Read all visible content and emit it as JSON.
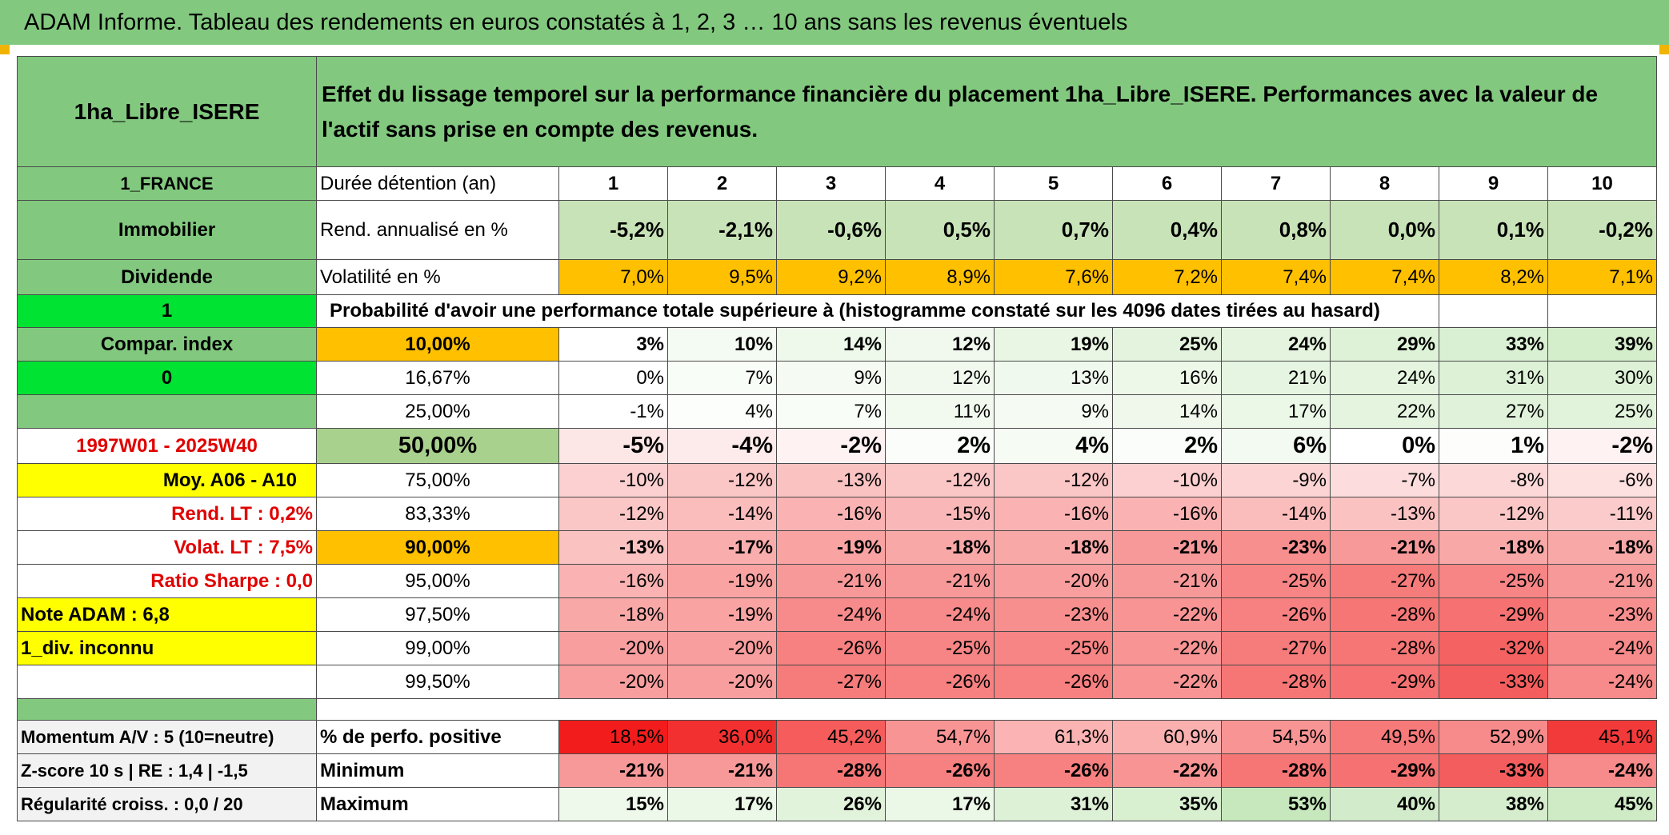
{
  "title": "ADAM Informe. Tableau des rendements en euros constatés à 1, 2, 3 … 10 ans sans les revenus éventuels",
  "fund_name": "1ha_Libre_ISERE",
  "description": "Effet du lissage temporel sur la performance financière du placement 1ha_Libre_ISERE. Performances avec la valeur de l'actif sans prise en compte des revenus.",
  "side": {
    "country": "1_FRANCE",
    "asset_class": "Immobilier",
    "dividend_label": "Dividende",
    "dividend_value": "1",
    "compar_label": "Compar. index",
    "compar_value": "0",
    "period": "1997W01 - 2025W40",
    "moy": "Moy. A06 - A10",
    "rend_lt": "Rend. LT :   0,2%",
    "volat_lt": "Volat. LT :   7,5%",
    "sharpe": "Ratio Sharpe :    0,0",
    "note": "Note ADAM : 6,8",
    "div_inconnu": "1_div. inconnu",
    "momentum": "Momentum A/V : 5 (10=neutre)",
    "zscore": "Z-score 10 s | RE : 1,4 | -1,5",
    "regularite": "Régularité croiss. : 0,0 / 20"
  },
  "labels": {
    "duree": "Durée détention (an)",
    "rend": "Rend. annualisé en %",
    "vol": "Volatilité en %",
    "proba": "Probabilité d'avoir une performance totale supérieure à (histogramme constaté sur les 4096 dates tirées au hasard)",
    "pos": "% de perfo. positive",
    "min": "Minimum",
    "max": "Maximum"
  },
  "years": [
    "1",
    "2",
    "3",
    "4",
    "5",
    "6",
    "7",
    "8",
    "9",
    "10"
  ],
  "rend": [
    "-5,2%",
    "-2,1%",
    "-0,6%",
    "0,5%",
    "0,7%",
    "0,4%",
    "0,8%",
    "0,0%",
    "0,1%",
    "-0,2%"
  ],
  "vol": [
    "7,0%",
    "9,5%",
    "9,2%",
    "8,9%",
    "7,6%",
    "7,2%",
    "7,4%",
    "7,4%",
    "8,2%",
    "7,1%"
  ],
  "pct_rows": [
    {
      "label": "10,00%",
      "values": [
        "3%",
        "10%",
        "14%",
        "12%",
        "19%",
        "25%",
        "24%",
        "29%",
        "33%",
        "39%"
      ],
      "colors": [
        "#ffffff",
        "#f4fbf2",
        "#eef8eb",
        "#f1f9ee",
        "#e9f6e4",
        "#e3f3dd",
        "#e4f4de",
        "#def2d7",
        "#daf0d2",
        "#d4edcb"
      ]
    },
    {
      "label": "16,67%",
      "values": [
        "0%",
        "7%",
        "9%",
        "12%",
        "13%",
        "16%",
        "21%",
        "24%",
        "31%",
        "30%"
      ],
      "colors": [
        "#ffffff",
        "#f9fdf8",
        "#f5fbf3",
        "#f1f9ee",
        "#f0f9ed",
        "#edf8e9",
        "#e6f5e1",
        "#e4f4de",
        "#dcf1d5",
        "#ddf1d6"
      ]
    },
    {
      "label": "25,00%",
      "values": [
        "-1%",
        "4%",
        "7%",
        "11%",
        "9%",
        "14%",
        "17%",
        "22%",
        "27%",
        "25%"
      ],
      "colors": [
        "#ffffff",
        "#fcfefb",
        "#f9fdf8",
        "#f2faef",
        "#f5fbf3",
        "#eff8eb",
        "#ebf7e7",
        "#e5f4df",
        "#e0f2d9",
        "#e2f3dc"
      ]
    },
    {
      "label": "50,00%",
      "values": [
        "-5%",
        "-4%",
        "-2%",
        "2%",
        "4%",
        "2%",
        "6%",
        "0%",
        "1%",
        "-2%"
      ],
      "colors": [
        "#fde6e6",
        "#fdeaea",
        "#fef2f2",
        "#fafdf9",
        "#f6fbf4",
        "#fafdf9",
        "#f3faf1",
        "#ffffff",
        "#fdfefc",
        "#fef2f2"
      ]
    },
    {
      "label": "75,00%",
      "values": [
        "-10%",
        "-12%",
        "-13%",
        "-12%",
        "-12%",
        "-10%",
        "-9%",
        "-7%",
        "-8%",
        "-6%"
      ],
      "colors": [
        "#fcd0d0",
        "#fbc6c6",
        "#fbc2c2",
        "#fbc6c6",
        "#fbc6c6",
        "#fcd0d0",
        "#fcd4d4",
        "#fcdcdc",
        "#fcd8d8",
        "#fde0e0"
      ]
    },
    {
      "label": "83,33%",
      "values": [
        "-12%",
        "-14%",
        "-16%",
        "-15%",
        "-16%",
        "-16%",
        "-14%",
        "-13%",
        "-12%",
        "-11%"
      ],
      "colors": [
        "#fbc6c6",
        "#fbbcbc",
        "#fab2b2",
        "#fab7b7",
        "#fab2b2",
        "#fab2b2",
        "#fbbcbc",
        "#fbc2c2",
        "#fbc6c6",
        "#fbcbcb"
      ]
    },
    {
      "label": "90,00%",
      "values": [
        "-13%",
        "-17%",
        "-19%",
        "-18%",
        "-18%",
        "-21%",
        "-23%",
        "-21%",
        "-18%",
        "-18%"
      ],
      "colors": [
        "#fbc2c2",
        "#faadad",
        "#f9a3a3",
        "#f9a8a8",
        "#f9a8a8",
        "#f89999",
        "#f88f8f",
        "#f89999",
        "#f9a8a8",
        "#f9a8a8"
      ]
    },
    {
      "label": "95,00%",
      "values": [
        "-16%",
        "-19%",
        "-21%",
        "-21%",
        "-20%",
        "-21%",
        "-25%",
        "-27%",
        "-25%",
        "-21%"
      ],
      "colors": [
        "#fab2b2",
        "#f9a3a3",
        "#f89999",
        "#f89999",
        "#f99e9e",
        "#f89999",
        "#f78585",
        "#f67b7b",
        "#f78585",
        "#f89999"
      ]
    },
    {
      "label": "97,50%",
      "values": [
        "-18%",
        "-19%",
        "-24%",
        "-24%",
        "-23%",
        "-22%",
        "-26%",
        "-28%",
        "-29%",
        "-23%"
      ],
      "colors": [
        "#f9a8a8",
        "#f9a3a3",
        "#f78a8a",
        "#f78a8a",
        "#f88f8f",
        "#f89494",
        "#f78080",
        "#f67676",
        "#f67171",
        "#f88f8f"
      ]
    },
    {
      "label": "99,00%",
      "values": [
        "-20%",
        "-20%",
        "-26%",
        "-25%",
        "-25%",
        "-22%",
        "-27%",
        "-28%",
        "-32%",
        "-24%"
      ],
      "colors": [
        "#f99e9e",
        "#f99e9e",
        "#f78080",
        "#f78585",
        "#f78585",
        "#f89494",
        "#f67b7b",
        "#f67676",
        "#f56262",
        "#f78a8a"
      ]
    },
    {
      "label": "99,50%",
      "values": [
        "-20%",
        "-20%",
        "-27%",
        "-26%",
        "-26%",
        "-22%",
        "-28%",
        "-29%",
        "-33%",
        "-24%"
      ],
      "colors": [
        "#f99e9e",
        "#f99e9e",
        "#f67b7b",
        "#f78080",
        "#f78080",
        "#f89494",
        "#f67676",
        "#f67171",
        "#f45d5d",
        "#f78a8a"
      ]
    }
  ],
  "positive": {
    "values": [
      "18,5%",
      "36,0%",
      "45,2%",
      "54,7%",
      "61,3%",
      "60,9%",
      "54,5%",
      "49,5%",
      "52,9%",
      "45,1%"
    ],
    "colors": [
      "#f21c1c",
      "#f33030",
      "#f65c5c",
      "#f99494",
      "#fbb3b3",
      "#fbb0b0",
      "#f99494",
      "#f67a7a",
      "#f78a8a",
      "#f33a3a"
    ]
  },
  "minimum": {
    "values": [
      "-21%",
      "-21%",
      "-28%",
      "-26%",
      "-26%",
      "-22%",
      "-28%",
      "-29%",
      "-33%",
      "-24%"
    ],
    "colors": [
      "#f89999",
      "#f89999",
      "#f67676",
      "#f78080",
      "#f78080",
      "#f89494",
      "#f67676",
      "#f67171",
      "#f45d5d",
      "#f78a8a"
    ]
  },
  "maximum": {
    "values": [
      "15%",
      "17%",
      "26%",
      "17%",
      "31%",
      "35%",
      "53%",
      "40%",
      "38%",
      "45%"
    ],
    "colors": [
      "#eef8eb",
      "#ebf7e7",
      "#e1f3db",
      "#ebf7e7",
      "#dcf1d5",
      "#d8efd0",
      "#c6e8bc",
      "#d2eccb",
      "#d5edcd",
      "#cfebc6"
    ]
  }
}
